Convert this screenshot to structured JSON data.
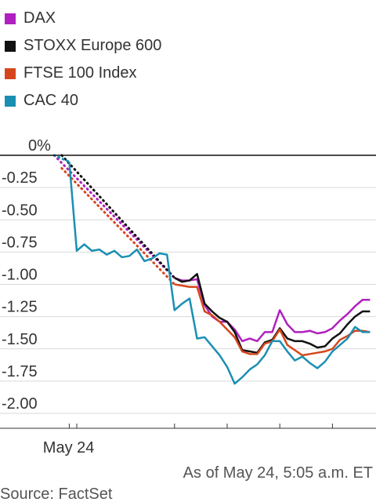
{
  "legend": {
    "items": [
      {
        "label": "DAX",
        "color": "#b01fbf"
      },
      {
        "label": "STOXX Europe 600",
        "color": "#111111"
      },
      {
        "label": "FTSE 100 Index",
        "color": "#d6461c"
      },
      {
        "label": "CAC 40",
        "color": "#1b8fb3"
      }
    ]
  },
  "chart_data": {
    "type": "line",
    "ylim": [
      -2.05,
      0
    ],
    "y_ticks": [
      {
        "value": 0,
        "label": "0%"
      },
      {
        "value": -0.25,
        "label": "-0.25"
      },
      {
        "value": -0.5,
        "label": "-0.50"
      },
      {
        "value": -0.75,
        "label": "-0.75"
      },
      {
        "value": -1.0,
        "label": "-1.00"
      },
      {
        "value": -1.25,
        "label": "-1.25"
      },
      {
        "value": -1.5,
        "label": "-1.50"
      },
      {
        "value": -1.75,
        "label": "-1.75"
      },
      {
        "value": -2.0,
        "label": "-2.00"
      }
    ],
    "x_label": "May 24",
    "x_range": [
      0,
      49
    ],
    "x_ticks": [
      9,
      10,
      23,
      30,
      37,
      44,
      51
    ],
    "footer_note": "As of May 24, 5:05 a.m. ET",
    "source": "Source: FactSet",
    "series": [
      {
        "name": "DAX",
        "color": "#b01fbf",
        "dotted": [
          [
            7,
            0
          ],
          [
            23,
            -0.95
          ]
        ],
        "values": [
          [
            23,
            -0.95
          ],
          [
            24,
            -0.97
          ],
          [
            25,
            -0.97
          ],
          [
            26,
            -0.96
          ],
          [
            27,
            -1.16
          ],
          [
            28,
            -1.25
          ],
          [
            29,
            -1.29
          ],
          [
            30,
            -1.29
          ],
          [
            31,
            -1.35
          ],
          [
            32,
            -1.44
          ],
          [
            33,
            -1.42
          ],
          [
            34,
            -1.44
          ],
          [
            35,
            -1.37
          ],
          [
            36,
            -1.37
          ],
          [
            37,
            -1.2
          ],
          [
            38,
            -1.31
          ],
          [
            39,
            -1.37
          ],
          [
            40,
            -1.37
          ],
          [
            41,
            -1.36
          ],
          [
            42,
            -1.38
          ],
          [
            43,
            -1.37
          ],
          [
            44,
            -1.34
          ],
          [
            45,
            -1.28
          ],
          [
            46,
            -1.23
          ],
          [
            47,
            -1.17
          ],
          [
            48,
            -1.12
          ],
          [
            49,
            -1.12
          ]
        ]
      },
      {
        "name": "STOXX Europe 600",
        "color": "#111111",
        "dotted": [
          [
            8,
            0
          ],
          [
            23,
            -0.95
          ]
        ],
        "values": [
          [
            23,
            -0.95
          ],
          [
            24,
            -0.98
          ],
          [
            25,
            -0.97
          ],
          [
            26,
            -0.92
          ],
          [
            27,
            -1.15
          ],
          [
            28,
            -1.21
          ],
          [
            29,
            -1.26
          ],
          [
            30,
            -1.29
          ],
          [
            31,
            -1.37
          ],
          [
            32,
            -1.51
          ],
          [
            33,
            -1.52
          ],
          [
            34,
            -1.53
          ],
          [
            35,
            -1.45
          ],
          [
            36,
            -1.43
          ],
          [
            37,
            -1.34
          ],
          [
            38,
            -1.42
          ],
          [
            39,
            -1.44
          ],
          [
            40,
            -1.44
          ],
          [
            41,
            -1.46
          ],
          [
            42,
            -1.49
          ],
          [
            43,
            -1.48
          ],
          [
            44,
            -1.42
          ],
          [
            45,
            -1.38
          ],
          [
            46,
            -1.31
          ],
          [
            47,
            -1.25
          ],
          [
            48,
            -1.21
          ],
          [
            49,
            -1.21
          ]
        ]
      },
      {
        "name": "FTSE 100 Index",
        "color": "#d6461c",
        "dotted": [
          [
            8,
            -0.1
          ],
          [
            23,
            -1.0
          ]
        ],
        "values": [
          [
            23,
            -1.0
          ],
          [
            24,
            -1.01
          ],
          [
            25,
            -1.02
          ],
          [
            26,
            -1.02
          ],
          [
            27,
            -1.21
          ],
          [
            28,
            -1.24
          ],
          [
            29,
            -1.29
          ],
          [
            30,
            -1.35
          ],
          [
            31,
            -1.41
          ],
          [
            32,
            -1.52
          ],
          [
            33,
            -1.54
          ],
          [
            34,
            -1.54
          ],
          [
            35,
            -1.46
          ],
          [
            36,
            -1.44
          ],
          [
            37,
            -1.35
          ],
          [
            38,
            -1.47
          ],
          [
            39,
            -1.51
          ],
          [
            40,
            -1.55
          ],
          [
            41,
            -1.54
          ],
          [
            42,
            -1.53
          ],
          [
            43,
            -1.52
          ],
          [
            44,
            -1.5
          ],
          [
            45,
            -1.43
          ],
          [
            46,
            -1.4
          ],
          [
            47,
            -1.36
          ],
          [
            48,
            -1.36
          ],
          [
            49,
            -1.37
          ]
        ]
      },
      {
        "name": "CAC 40",
        "color": "#1b8fb3",
        "dotted": [
          [
            7,
            0
          ],
          [
            9,
            -0.05
          ]
        ],
        "values": [
          [
            9,
            -0.05
          ],
          [
            10,
            -0.74
          ],
          [
            11,
            -0.69
          ],
          [
            12,
            -0.74
          ],
          [
            13,
            -0.73
          ],
          [
            14,
            -0.77
          ],
          [
            15,
            -0.74
          ],
          [
            16,
            -0.79
          ],
          [
            17,
            -0.78
          ],
          [
            18,
            -0.73
          ],
          [
            19,
            -0.82
          ],
          [
            20,
            -0.8
          ],
          [
            21,
            -0.76
          ],
          [
            22,
            -0.77
          ],
          [
            23,
            -1.2
          ],
          [
            24,
            -1.15
          ],
          [
            25,
            -1.11
          ],
          [
            26,
            -1.42
          ],
          [
            27,
            -1.41
          ],
          [
            28,
            -1.48
          ],
          [
            29,
            -1.55
          ],
          [
            30,
            -1.64
          ],
          [
            31,
            -1.77
          ],
          [
            32,
            -1.72
          ],
          [
            33,
            -1.66
          ],
          [
            34,
            -1.62
          ],
          [
            35,
            -1.55
          ],
          [
            36,
            -1.44
          ],
          [
            37,
            -1.44
          ],
          [
            38,
            -1.52
          ],
          [
            39,
            -1.59
          ],
          [
            40,
            -1.56
          ],
          [
            41,
            -1.61
          ],
          [
            42,
            -1.65
          ],
          [
            43,
            -1.6
          ],
          [
            44,
            -1.52
          ],
          [
            45,
            -1.47
          ],
          [
            46,
            -1.42
          ],
          [
            47,
            -1.33
          ],
          [
            48,
            -1.37
          ],
          [
            49,
            -1.37
          ]
        ]
      }
    ]
  }
}
